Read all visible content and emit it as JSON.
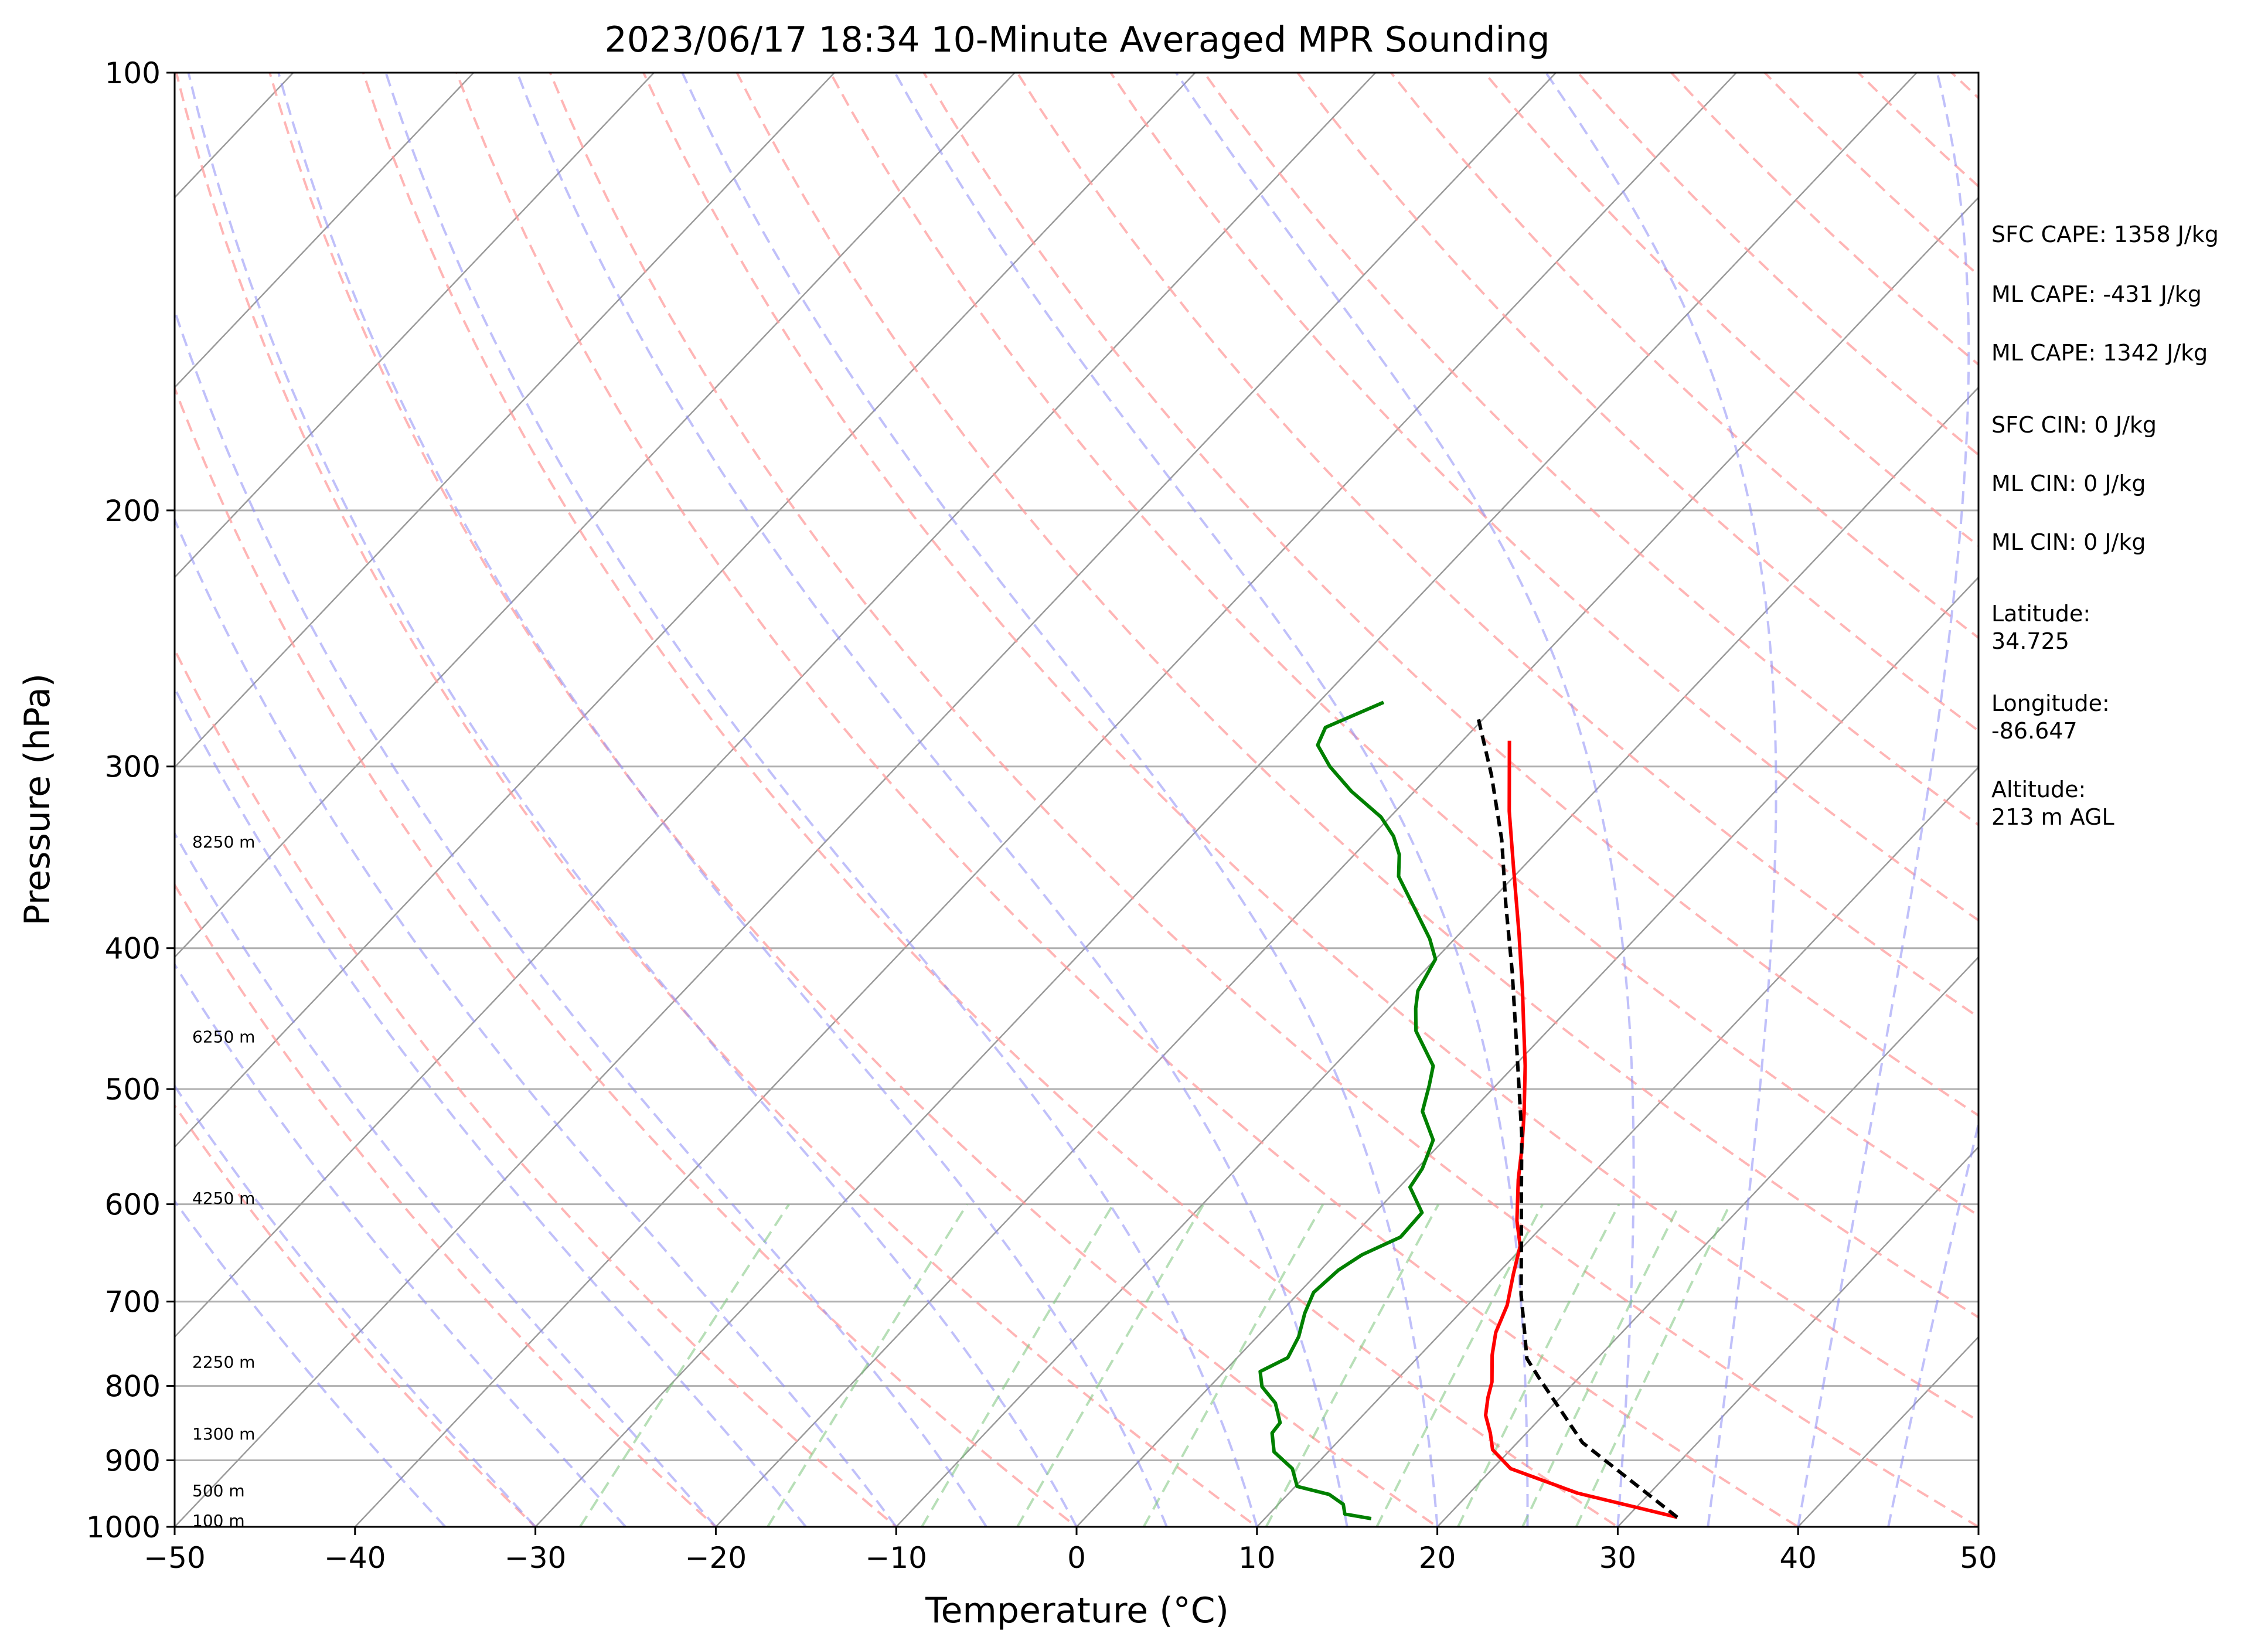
{
  "chart_data": {
    "type": "line",
    "title": "2023/06/17 18:34 10-Minute Averaged MPR Sounding",
    "xlabel": "Temperature (°C)",
    "ylabel": "Pressure (hPa)",
    "xlim": [
      -50,
      50
    ],
    "ylim": [
      1000,
      100
    ],
    "y_scale": "log",
    "grid": true,
    "x_ticks": [
      "−50",
      "−40",
      "−30",
      "−20",
      "−10",
      "0",
      "10",
      "20",
      "30",
      "40",
      "50"
    ],
    "y_ticks": [
      "100",
      "200",
      "300",
      "400",
      "500",
      "600",
      "700",
      "800",
      "900",
      "1000"
    ],
    "series": [
      {
        "color": "#ff0000",
        "points": [
          [
            32.8,
            985
          ],
          [
            26.0,
            948
          ],
          [
            21.0,
            912
          ],
          [
            19.0,
            885
          ],
          [
            18.0,
            862
          ],
          [
            16.8,
            838
          ],
          [
            16.0,
            815
          ],
          [
            15.4,
            795
          ],
          [
            14.0,
            762
          ],
          [
            13.0,
            735
          ],
          [
            12.2,
            704
          ],
          [
            10.9,
            670
          ],
          [
            9.8,
            641
          ],
          [
            8.3,
            616
          ],
          [
            6.2,
            577
          ],
          [
            4.8,
            550
          ],
          [
            3.0,
            519
          ],
          [
            0.6,
            482
          ],
          [
            -1.7,
            451
          ],
          [
            -3.5,
            428
          ],
          [
            -6.7,
            391
          ],
          [
            -10.5,
            352
          ],
          [
            -13.7,
            322
          ],
          [
            -17.4,
            288
          ]
        ]
      },
      {
        "color": "#008000",
        "points": [
          [
            15.9,
            987
          ],
          [
            14.2,
            980
          ],
          [
            13.6,
            965
          ],
          [
            12.3,
            950
          ],
          [
            10.1,
            938
          ],
          [
            8.9,
            912
          ],
          [
            7.0,
            888
          ],
          [
            5.9,
            862
          ],
          [
            5.8,
            848
          ],
          [
            4.5,
            822
          ],
          [
            2.9,
            801
          ],
          [
            2.0,
            782
          ],
          [
            2.8,
            765
          ],
          [
            2.3,
            740
          ],
          [
            1.4,
            713
          ],
          [
            0.8,
            690
          ],
          [
            1.0,
            666
          ],
          [
            1.5,
            650
          ],
          [
            2.7,
            632
          ],
          [
            2.6,
            608
          ],
          [
            0.6,
            584
          ],
          [
            0.3,
            567
          ],
          [
            -0.6,
            542
          ],
          [
            -2.7,
            518
          ],
          [
            -3.7,
            497
          ],
          [
            -4.5,
            482
          ],
          [
            -7.3,
            456
          ],
          [
            -8.5,
            440
          ],
          [
            -9.3,
            428
          ],
          [
            -10.0,
            407
          ],
          [
            -11.4,
            394
          ],
          [
            -13.5,
            378
          ],
          [
            -16.4,
            357
          ],
          [
            -17.5,
            345
          ],
          [
            -18.8,
            335
          ],
          [
            -20.5,
            325
          ],
          [
            -23.5,
            312
          ],
          [
            -26.0,
            300
          ],
          [
            -27.8,
            290
          ],
          [
            -28.3,
            282
          ],
          [
            -26.4,
            271
          ]
        ]
      },
      {
        "color": "#000000",
        "dashed": true,
        "points": [
          [
            32.8,
            985
          ],
          [
            23.6,
            875
          ],
          [
            17.8,
            790
          ],
          [
            16.1,
            766
          ],
          [
            14.4,
            731
          ],
          [
            12.4,
            692
          ],
          [
            9.4,
            632
          ],
          [
            7.0,
            588
          ],
          [
            4.0,
            537
          ],
          [
            -0.7,
            470
          ],
          [
            -5.1,
            415
          ],
          [
            -9.0,
            373
          ],
          [
            -12.6,
            337
          ],
          [
            -16.6,
            304
          ],
          [
            -20.3,
            278
          ]
        ]
      }
    ],
    "height_labels": [
      {
        "text": "100 m",
        "p": 990
      },
      {
        "text": "500 m",
        "p": 944
      },
      {
        "text": "1300 m",
        "p": 863
      },
      {
        "text": "2250 m",
        "p": 770
      },
      {
        "text": "4250 m",
        "p": 594
      },
      {
        "text": "6250 m",
        "p": 460
      },
      {
        "text": "8250 m",
        "p": 338
      }
    ],
    "annotations": [
      "SFC CAPE: 1358 J/kg",
      "ML CAPE: -431 J/kg",
      "ML CAPE: 1342 J/kg",
      "SFC CIN: 0 J/kg",
      "ML CIN: 0 J/kg",
      "ML CIN: 0 J/kg",
      "Latitude:",
      "34.725",
      "Longitude:",
      "-86.647",
      "Altitude:",
      "213 m AGL"
    ]
  }
}
